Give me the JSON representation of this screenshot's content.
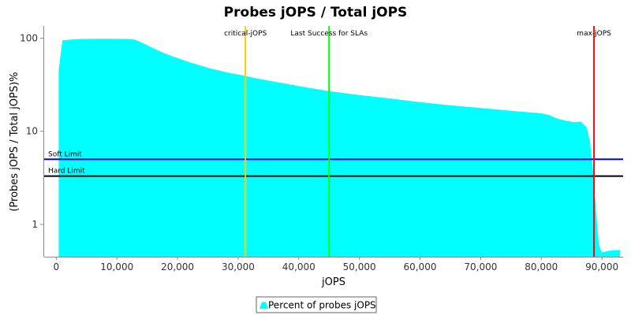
{
  "chart_data": {
    "type": "area",
    "title": "Probes jOPS / Total jOPS",
    "xlabel": "jOPS",
    "ylabel": "(Probes jOPS / Total jOPS)%",
    "y_scale": "log",
    "xlim": [
      -2000,
      93500
    ],
    "ylim": [
      0.45,
      135
    ],
    "x_ticks": [
      0,
      10000,
      20000,
      30000,
      40000,
      50000,
      60000,
      70000,
      80000,
      90000
    ],
    "x_tick_labels": [
      "0",
      "10,000",
      "20,000",
      "30,000",
      "40,000",
      "50,000",
      "60,000",
      "70,000",
      "80,000",
      "90,000"
    ],
    "y_ticks": [
      1,
      10,
      100
    ],
    "y_tick_labels": [
      "1",
      "10",
      "100"
    ],
    "grid": false,
    "legend_position": "bottom-center",
    "series": [
      {
        "name": "Percent of probes jOPS",
        "color": "#00ffff",
        "x": [
          400,
          1000,
          4000,
          8000,
          12000,
          13000,
          14000,
          16000,
          18000,
          20000,
          22000,
          25000,
          28000,
          31000,
          33000,
          36000,
          40000,
          45000,
          50000,
          55000,
          60000,
          65000,
          70000,
          75000,
          80000,
          81500,
          82500,
          84000,
          85500,
          86500,
          87500,
          88000,
          88500,
          89000,
          89500,
          90000,
          91000,
          92000,
          93000
        ],
        "y": [
          45,
          95,
          98,
          98.5,
          98,
          96,
          90,
          78,
          68,
          61,
          55,
          48,
          43,
          39.5,
          37,
          34,
          30.5,
          27,
          24.5,
          22.5,
          20.5,
          19,
          17.8,
          16.6,
          15.6,
          14.8,
          13.8,
          13,
          12.5,
          12.7,
          11,
          8,
          4,
          1.5,
          0.6,
          0.5,
          0.52,
          0.53,
          0.53
        ]
      }
    ],
    "vertical_markers": [
      {
        "label": "critical-jOPS",
        "x": 31200,
        "color": "#ffcc00"
      },
      {
        "label": "Last Success for SLAs",
        "x": 45000,
        "color": "#00ff00"
      },
      {
        "label": "max-jOPS",
        "x": 88700,
        "color": "#ff0000"
      }
    ],
    "horizontal_markers": [
      {
        "label": "Soft Limit",
        "y": 5,
        "color": "#0000ff"
      },
      {
        "label": "Hard Limit",
        "y": 3.3,
        "color": "#000000"
      }
    ]
  }
}
